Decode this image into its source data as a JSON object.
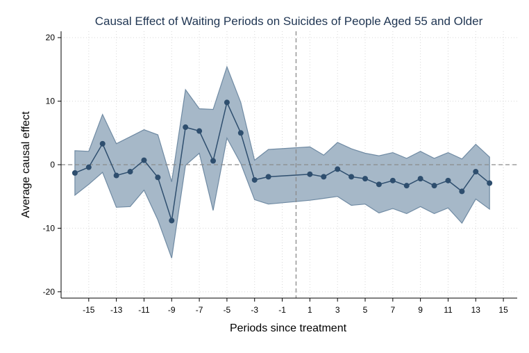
{
  "chart_data": {
    "type": "line",
    "title": "Causal Effect of Waiting Periods on Suicides of People Aged 55 and Older",
    "xlabel": "Periods since treatment",
    "ylabel": "Average causal effect",
    "xlim": [
      -17,
      16
    ],
    "ylim": [
      -21,
      21
    ],
    "xticks": [
      -15,
      -13,
      -11,
      -9,
      -7,
      -5,
      -3,
      -1,
      1,
      3,
      5,
      7,
      9,
      11,
      13,
      15
    ],
    "yticks": [
      -20,
      -10,
      0,
      10,
      20
    ],
    "grid": true,
    "reference_lines": {
      "horizontal_y": 0,
      "vertical_x": 0
    },
    "series": [
      {
        "x": [
          -16,
          -15,
          -14,
          -13,
          -12,
          -11,
          -10,
          -9,
          -8,
          -7,
          -6,
          -5,
          -4,
          -3,
          -2,
          1,
          2,
          3,
          4,
          5,
          6,
          7,
          8,
          9,
          10,
          11,
          12,
          13,
          14
        ],
        "y": [
          -1.3,
          -0.4,
          3.3,
          -1.7,
          -1.1,
          0.7,
          -2.0,
          -8.8,
          5.9,
          5.3,
          0.6,
          9.8,
          5.0,
          -2.4,
          -1.9,
          -1.5,
          -1.9,
          -0.7,
          -1.9,
          -2.2,
          -3.1,
          -2.5,
          -3.3,
          -2.2,
          -3.3,
          -2.5,
          -4.2,
          -1.1,
          -2.9
        ],
        "lower": [
          -4.8,
          -3.1,
          -1.2,
          -6.7,
          -6.6,
          -4.0,
          -8.7,
          -14.7,
          -0.1,
          1.8,
          -7.2,
          4.2,
          0.2,
          -5.5,
          -6.2,
          -5.6,
          -5.3,
          -5.0,
          -6.4,
          -6.2,
          -7.6,
          -6.9,
          -7.7,
          -6.6,
          -7.7,
          -6.8,
          -9.2,
          -5.4,
          -7.0
        ],
        "upper": [
          2.2,
          2.1,
          7.9,
          3.3,
          4.4,
          5.5,
          4.7,
          -2.7,
          11.8,
          8.8,
          8.7,
          15.4,
          9.8,
          0.7,
          2.4,
          2.8,
          1.5,
          3.5,
          2.5,
          1.8,
          1.4,
          1.9,
          1.0,
          2.1,
          1.0,
          1.9,
          0.9,
          3.2,
          1.2
        ]
      }
    ],
    "colors": {
      "line": "#2e4e6e",
      "band": "#a6b8c8",
      "band_edge": "#6f8aa3",
      "grid": "#d7d7d7",
      "ref": "#8a8a8a",
      "title": "#1f3552"
    }
  }
}
